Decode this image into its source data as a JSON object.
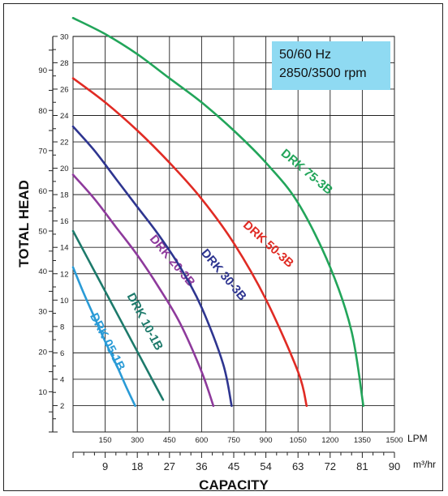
{
  "chart_data": {
    "type": "line",
    "xlabel": "CAPACITY",
    "ylabel": "TOTAL HEAD",
    "x_unit_primary": "LPM",
    "x_unit_secondary": "m³/hr",
    "y_unit": "",
    "info_box": {
      "line1": "50/60 Hz",
      "line2": "2850/3500 rpm",
      "color": "#8fdaf2"
    },
    "xlim_lpm": [
      0,
      1500
    ],
    "ylim_ft": [
      0,
      98.4
    ],
    "lpm_ticks": [
      "150",
      "300",
      "450",
      "600",
      "750",
      "900",
      "1050",
      "1200",
      "1350",
      "1500"
    ],
    "m3_ticks": [
      "9",
      "18",
      "27",
      "36",
      "45",
      "54",
      "63",
      "72",
      "81",
      "90"
    ],
    "ft_ticks": [
      "10",
      "20",
      "30",
      "40",
      "50",
      "60",
      "70",
      "80",
      "90"
    ],
    "m_ticks": [
      "2",
      "4",
      "6",
      "8",
      "10",
      "12",
      "14",
      "16",
      "18",
      "20",
      "22",
      "24",
      "26",
      "28",
      "30"
    ],
    "series": [
      {
        "name": "DRK 05-1B",
        "color": "#2a9bd6",
        "x": [
          0,
          50,
          100,
          150,
          200,
          250,
          290
        ],
        "y": [
          41,
          34.5,
          28.5,
          22.5,
          17,
          11,
          6.5
        ],
        "label_lpm": 145,
        "label_ft": 22,
        "label_angle": 63
      },
      {
        "name": "DRK 10-1B",
        "color": "#1d7a6b",
        "x": [
          0,
          100,
          200,
          300,
          380,
          420
        ],
        "y": [
          50,
          40,
          30,
          20,
          12,
          8
        ],
        "label_lpm": 320,
        "label_ft": 27,
        "label_angle": 62
      },
      {
        "name": "DRK 20-3B",
        "color": "#8e3a9c",
        "x": [
          0,
          100,
          200,
          300,
          400,
          500,
          600,
          655
        ],
        "y": [
          64,
          58,
          51,
          44,
          36,
          27,
          15,
          6.5
        ],
        "label_lpm": 450,
        "label_ft": 42,
        "label_angle": 50
      },
      {
        "name": "DRK 30-3B",
        "color": "#2e3590",
        "x": [
          0,
          100,
          200,
          300,
          400,
          500,
          600,
          700,
          740
        ],
        "y": [
          76,
          70,
          63,
          56,
          49,
          41,
          31,
          17,
          6.5
        ],
        "label_lpm": 690,
        "label_ft": 38.5,
        "label_angle": 50
      },
      {
        "name": "DRK 50-3B",
        "color": "#e02b24",
        "x": [
          0,
          150,
          300,
          450,
          600,
          750,
          900,
          1050,
          1090
        ],
        "y": [
          88,
          82,
          75,
          67,
          58,
          47,
          33,
          15,
          6.5
        ],
        "label_lpm": 900,
        "label_ft": 46,
        "label_angle": 42
      },
      {
        "name": "DRK 75-3B",
        "color": "#22a55a",
        "x": [
          0,
          150,
          300,
          450,
          600,
          750,
          900,
          1050,
          1200,
          1300,
          1355
        ],
        "y": [
          103,
          99,
          94,
          88,
          82,
          75,
          67,
          57,
          41,
          25,
          6.5
        ],
        "label_lpm": 1080,
        "label_ft": 64,
        "label_angle": 40
      }
    ]
  }
}
